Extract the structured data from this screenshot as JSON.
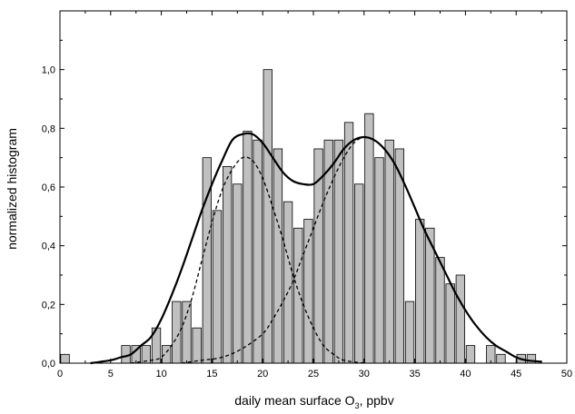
{
  "chart_data": {
    "type": "bar",
    "xlabel_main": "daily mean surface O",
    "xlabel_sub": "3",
    "xlabel_tail": ", ppbv",
    "ylabel": "normalized histogram",
    "xlim": [
      0,
      50
    ],
    "ylim": [
      0,
      1.2
    ],
    "x_ticks": [
      0,
      5,
      10,
      15,
      20,
      25,
      30,
      35,
      40,
      45,
      50
    ],
    "x_tick_labels": [
      "0",
      "5",
      "10",
      "15",
      "20",
      "25",
      "30",
      "35",
      "40",
      "45",
      "50"
    ],
    "y_ticks": [
      0,
      0.2,
      0.4,
      0.6,
      0.8,
      1.0
    ],
    "y_tick_labels": [
      "0,0",
      "0,2",
      "0,4",
      "0,6",
      "0,8",
      "1,0"
    ],
    "bar_width": 0.85,
    "bar_color": "#c0c0c0",
    "bars": [
      {
        "x": 0.5,
        "y": 0.03
      },
      {
        "x": 6.5,
        "y": 0.06
      },
      {
        "x": 7.5,
        "y": 0.06
      },
      {
        "x": 8.5,
        "y": 0.06
      },
      {
        "x": 9.5,
        "y": 0.12
      },
      {
        "x": 10.5,
        "y": 0.06
      },
      {
        "x": 11.5,
        "y": 0.21
      },
      {
        "x": 12.5,
        "y": 0.21
      },
      {
        "x": 13.5,
        "y": 0.12
      },
      {
        "x": 14.5,
        "y": 0.7
      },
      {
        "x": 15.5,
        "y": 0.52
      },
      {
        "x": 16.5,
        "y": 0.67
      },
      {
        "x": 17.5,
        "y": 0.61
      },
      {
        "x": 18.5,
        "y": 0.79
      },
      {
        "x": 19.5,
        "y": 0.76
      },
      {
        "x": 20.5,
        "y": 1.0
      },
      {
        "x": 21.5,
        "y": 0.73
      },
      {
        "x": 22.5,
        "y": 0.55
      },
      {
        "x": 23.5,
        "y": 0.46
      },
      {
        "x": 24.5,
        "y": 0.49
      },
      {
        "x": 25.5,
        "y": 0.73
      },
      {
        "x": 26.5,
        "y": 0.76
      },
      {
        "x": 27.5,
        "y": 0.76
      },
      {
        "x": 28.5,
        "y": 0.82
      },
      {
        "x": 29.5,
        "y": 0.61
      },
      {
        "x": 30.5,
        "y": 0.85
      },
      {
        "x": 31.5,
        "y": 0.7
      },
      {
        "x": 32.5,
        "y": 0.76
      },
      {
        "x": 33.5,
        "y": 0.73
      },
      {
        "x": 34.5,
        "y": 0.21
      },
      {
        "x": 35.5,
        "y": 0.49
      },
      {
        "x": 36.5,
        "y": 0.46
      },
      {
        "x": 37.5,
        "y": 0.36
      },
      {
        "x": 38.5,
        "y": 0.27
      },
      {
        "x": 39.5,
        "y": 0.3
      },
      {
        "x": 40.5,
        "y": 0.06
      },
      {
        "x": 42.5,
        "y": 0.06
      },
      {
        "x": 43.5,
        "y": 0.03
      },
      {
        "x": 45.5,
        "y": 0.03
      },
      {
        "x": 46.5,
        "y": 0.03
      }
    ],
    "curves": {
      "fit_total": {
        "style": "solid",
        "color": "#000000",
        "points": [
          [
            3,
            0.0
          ],
          [
            5,
            0.01
          ],
          [
            6,
            0.02
          ],
          [
            7,
            0.03
          ],
          [
            8,
            0.06
          ],
          [
            9,
            0.09
          ],
          [
            10,
            0.15
          ],
          [
            11,
            0.23
          ],
          [
            12,
            0.32
          ],
          [
            13,
            0.42
          ],
          [
            14,
            0.52
          ],
          [
            15,
            0.61
          ],
          [
            16,
            0.69
          ],
          [
            17,
            0.76
          ],
          [
            18,
            0.78
          ],
          [
            19,
            0.78
          ],
          [
            20,
            0.75
          ],
          [
            21,
            0.7
          ],
          [
            22,
            0.65
          ],
          [
            23,
            0.62
          ],
          [
            24,
            0.61
          ],
          [
            25,
            0.61
          ],
          [
            26,
            0.64
          ],
          [
            27,
            0.68
          ],
          [
            28,
            0.73
          ],
          [
            29,
            0.76
          ],
          [
            30,
            0.77
          ],
          [
            31,
            0.76
          ],
          [
            32,
            0.73
          ],
          [
            33,
            0.68
          ],
          [
            34,
            0.61
          ],
          [
            35,
            0.53
          ],
          [
            36,
            0.45
          ],
          [
            37,
            0.38
          ],
          [
            38,
            0.31
          ],
          [
            39,
            0.24
          ],
          [
            40,
            0.18
          ],
          [
            41,
            0.13
          ],
          [
            42,
            0.09
          ],
          [
            43,
            0.06
          ],
          [
            44,
            0.04
          ],
          [
            45,
            0.02
          ],
          [
            46,
            0.01
          ],
          [
            47.5,
            0.005
          ]
        ]
      },
      "fit_component_1": {
        "style": "dashed",
        "color": "#000000",
        "points": [
          [
            7,
            0.0
          ],
          [
            9,
            0.01
          ],
          [
            10,
            0.02
          ],
          [
            11,
            0.06
          ],
          [
            12,
            0.12
          ],
          [
            13,
            0.22
          ],
          [
            14,
            0.35
          ],
          [
            15,
            0.48
          ],
          [
            16,
            0.59
          ],
          [
            17,
            0.66
          ],
          [
            18,
            0.7
          ],
          [
            19,
            0.69
          ],
          [
            20,
            0.63
          ],
          [
            21,
            0.53
          ],
          [
            22,
            0.42
          ],
          [
            23,
            0.3
          ],
          [
            24,
            0.2
          ],
          [
            25,
            0.12
          ],
          [
            26,
            0.06
          ],
          [
            27,
            0.03
          ],
          [
            28,
            0.01
          ],
          [
            30,
            0.0
          ]
        ]
      },
      "fit_component_2": {
        "style": "dashed",
        "color": "#000000",
        "points": [
          [
            12,
            0.0
          ],
          [
            14,
            0.01
          ],
          [
            16,
            0.02
          ],
          [
            18,
            0.05
          ],
          [
            20,
            0.1
          ],
          [
            21,
            0.15
          ],
          [
            22,
            0.21
          ],
          [
            23,
            0.28
          ],
          [
            24,
            0.37
          ],
          [
            25,
            0.46
          ],
          [
            26,
            0.55
          ],
          [
            27,
            0.63
          ],
          [
            28,
            0.7
          ],
          [
            29,
            0.75
          ],
          [
            30,
            0.77
          ],
          [
            31,
            0.76
          ],
          [
            32,
            0.73
          ],
          [
            33,
            0.68
          ],
          [
            34,
            0.61
          ],
          [
            35,
            0.53
          ],
          [
            36,
            0.45
          ],
          [
            37,
            0.38
          ],
          [
            38,
            0.31
          ],
          [
            39,
            0.24
          ],
          [
            40,
            0.18
          ],
          [
            41,
            0.13
          ],
          [
            42,
            0.09
          ],
          [
            43,
            0.06
          ],
          [
            44,
            0.04
          ],
          [
            45,
            0.02
          ],
          [
            46,
            0.01
          ],
          [
            47.5,
            0.005
          ]
        ]
      }
    }
  }
}
